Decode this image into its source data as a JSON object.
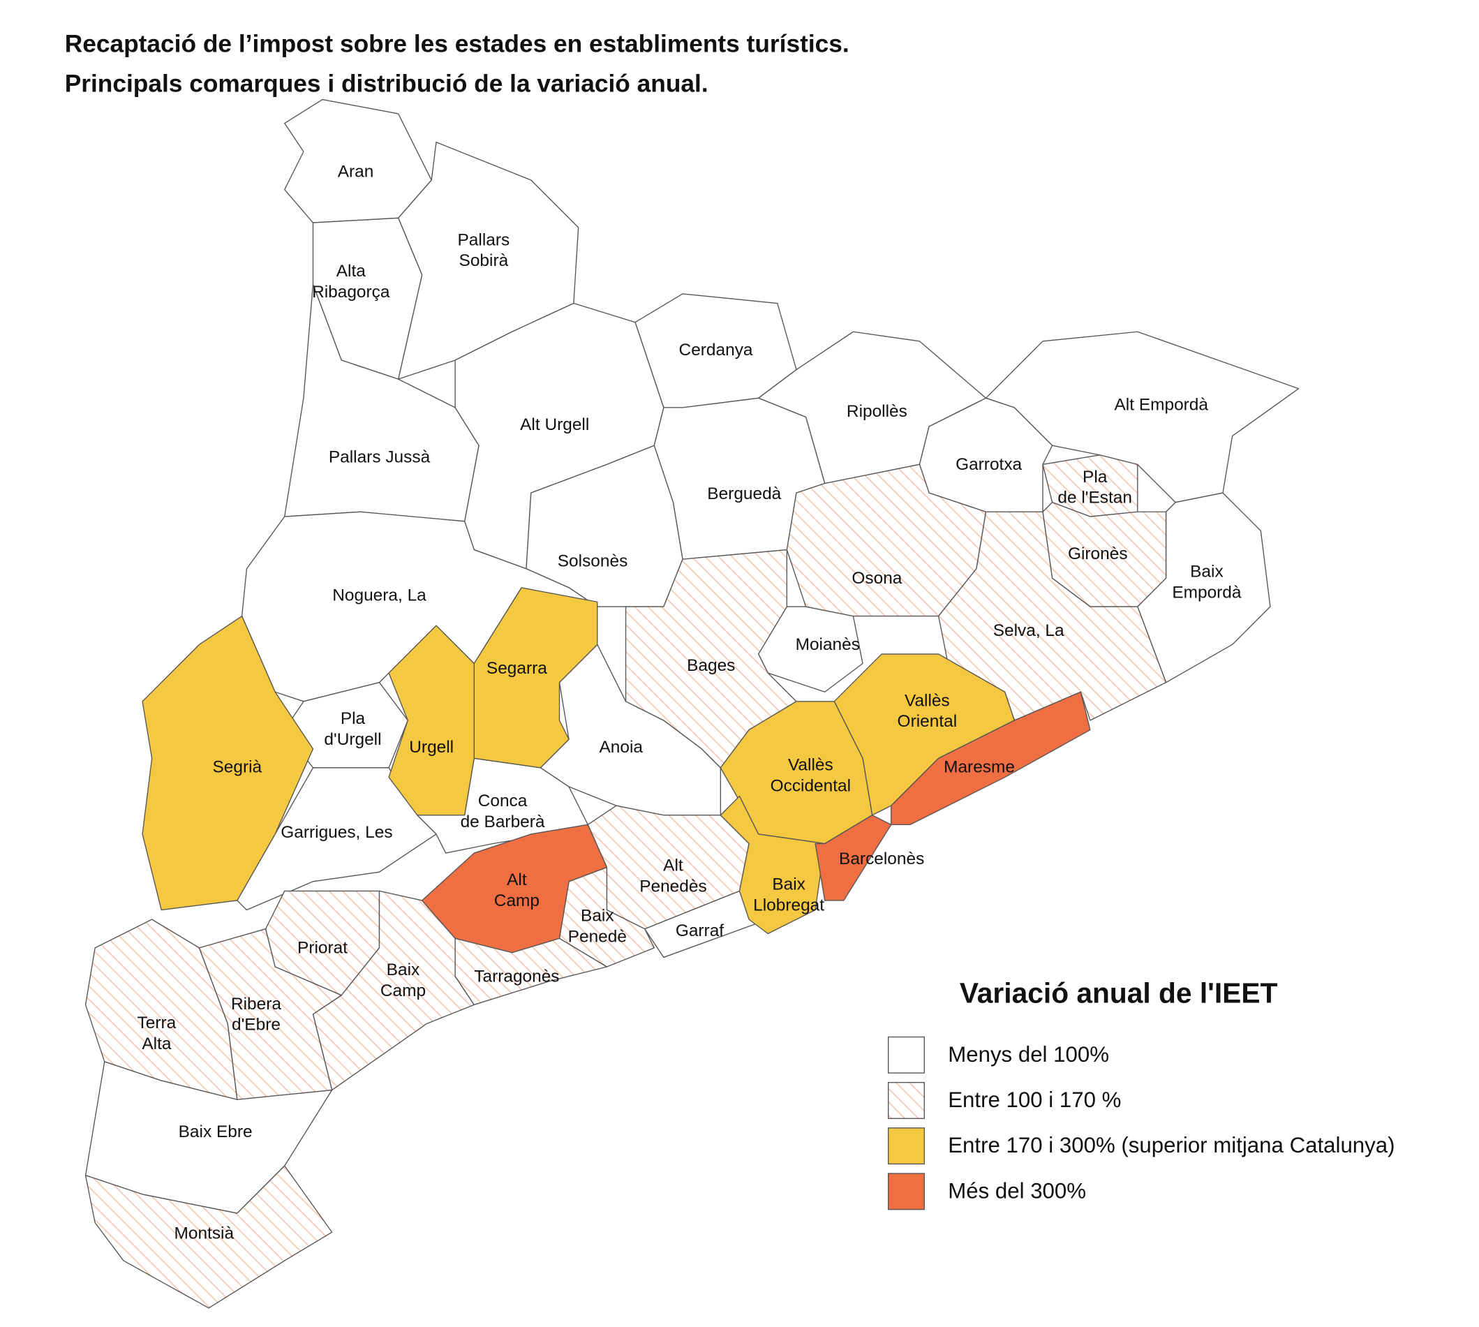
{
  "title": [
    "Recaptació de l’impost sobre les estades en establiments turístics.",
    "Principals comarques i distribució de la variació anual."
  ],
  "legend": {
    "title": "Variació anual de l'IEET",
    "items": [
      {
        "label": "Menys del 100%",
        "color": "#ffffff",
        "hatched": false,
        "regions": [
          [
            "Aran"
          ],
          [
            "Pallars",
            "Sobirà"
          ],
          [
            "Alta",
            "Ribagorça"
          ],
          [
            "Pallars Jussà"
          ],
          [
            "Alt Urgell"
          ],
          [
            "Cerdanya"
          ],
          [
            "Ripollès"
          ],
          [
            "Alt Empordà"
          ],
          [
            "Garrotxa"
          ],
          [
            "Berguedà"
          ],
          [
            "Solsonès"
          ],
          [
            "Noguera, La"
          ],
          [
            "Baix",
            "Empordà"
          ],
          [
            "Moianès"
          ],
          [
            "Pla",
            "d'Urgell"
          ],
          [
            "Anoia"
          ],
          [
            "Garrigues, Les"
          ],
          [
            "Conca",
            "de Barberà"
          ],
          [
            "Garraf"
          ],
          [
            "Baix Ebre"
          ]
        ]
      },
      {
        "label": "Entre 100 i 170 %",
        "color": "#f3c8b4",
        "hatched": true,
        "regions": [
          [
            "Pla",
            "de l'Estan"
          ],
          [
            "Gironès"
          ],
          [
            "Osona"
          ],
          [
            "Selva, La"
          ],
          [
            "Bages"
          ],
          [
            "Alt",
            "Penedès"
          ],
          [
            "Baix",
            "Penedè"
          ],
          [
            "Priorat"
          ],
          [
            "Baix",
            "Camp"
          ],
          [
            "Tarragonès"
          ],
          [
            "Terra",
            "Alta"
          ],
          [
            "Ribera",
            "d'Ebre"
          ],
          [
            "Montsià"
          ]
        ]
      },
      {
        "label": "Entre 170 i 300% (superior mitjana Catalunya)",
        "color": "#f5c842",
        "hatched": false,
        "regions": [
          [
            "Segarra"
          ],
          [
            "Urgell"
          ],
          [
            "Segrià"
          ],
          [
            "Vallès",
            "Oriental"
          ],
          [
            "Vallès",
            "Occidental"
          ],
          [
            "Baix",
            "Llobregat"
          ]
        ]
      },
      {
        "label": "Més del 300%",
        "color": "#ef6f42",
        "hatched": false,
        "regions": [
          [
            "Maresme"
          ],
          [
            "Alt",
            "Camp"
          ],
          [
            "Barcelonès"
          ]
        ]
      }
    ]
  }
}
